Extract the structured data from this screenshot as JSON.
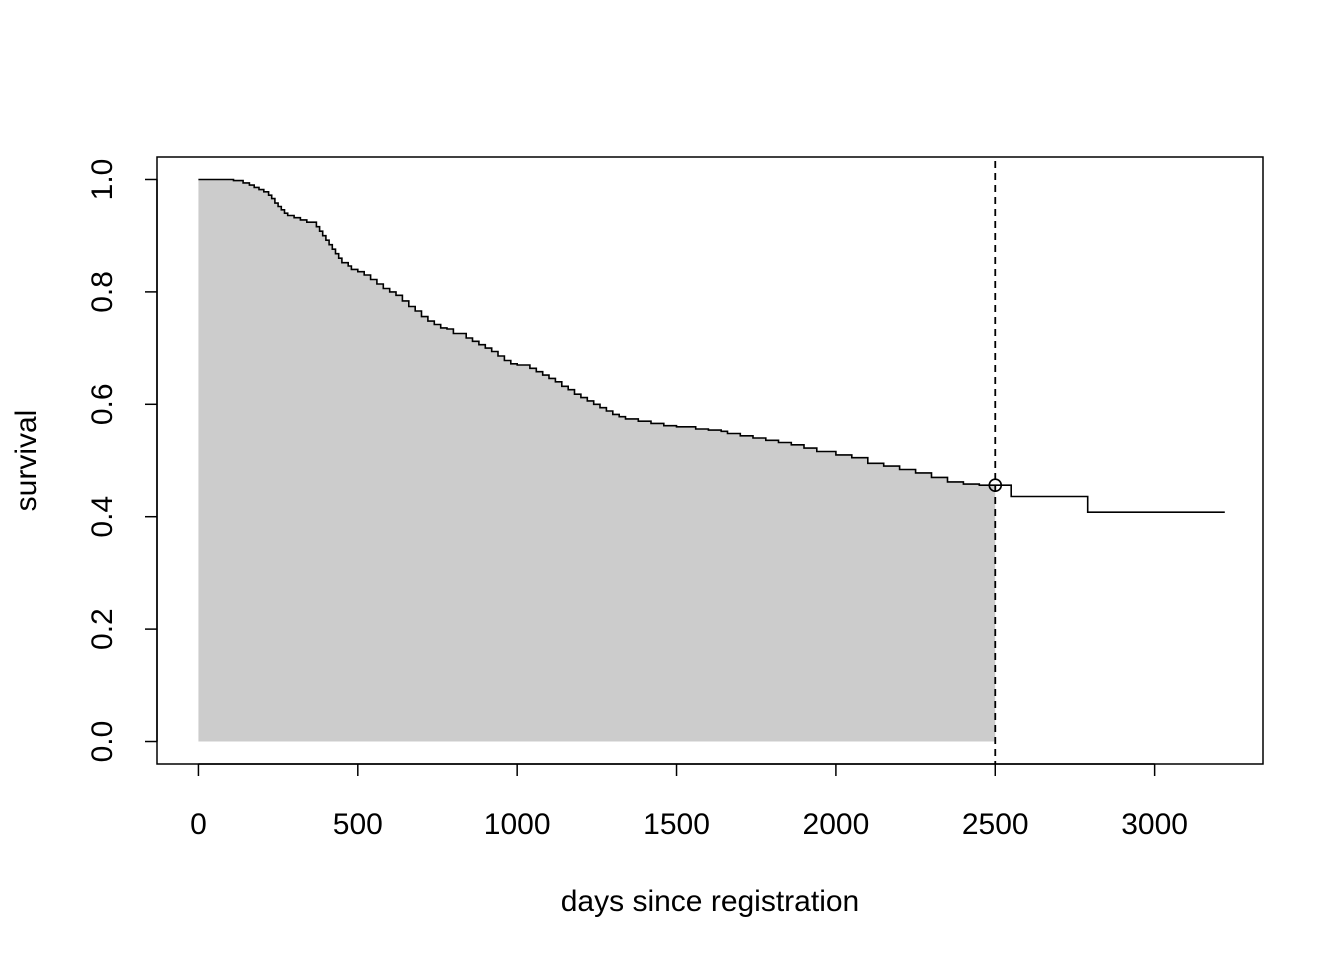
{
  "chart_data": {
    "type": "line",
    "title": "",
    "xlabel": "days since registration",
    "ylabel": "survival",
    "xlim": [
      -130,
      3340
    ],
    "ylim": [
      -0.04,
      1.04
    ],
    "x_ticks": [
      0,
      500,
      1000,
      1500,
      2000,
      2500,
      3000
    ],
    "x_tick_labels": [
      "0",
      "500",
      "1000",
      "1500",
      "2000",
      "2500",
      "3000"
    ],
    "y_ticks": [
      0.0,
      0.2,
      0.4,
      0.6,
      0.8,
      1.0
    ],
    "y_tick_labels": [
      "0.0",
      "0.2",
      "0.4",
      "0.6",
      "0.8",
      "1.0"
    ],
    "grid": false,
    "legend": false,
    "colors": {
      "line": "#000000",
      "shade": "#cccccc",
      "reference_line": "#000000"
    },
    "series": [
      {
        "style": "step",
        "x": [
          0,
          110,
          140,
          160,
          175,
          190,
          205,
          220,
          230,
          240,
          250,
          260,
          270,
          280,
          300,
          320,
          340,
          370,
          380,
          390,
          400,
          410,
          420,
          430,
          440,
          450,
          470,
          480,
          500,
          520,
          540,
          560,
          580,
          600,
          620,
          640,
          660,
          680,
          700,
          720,
          740,
          760,
          780,
          800,
          840,
          860,
          880,
          900,
          920,
          940,
          960,
          980,
          1000,
          1040,
          1060,
          1080,
          1100,
          1120,
          1140,
          1160,
          1180,
          1200,
          1220,
          1240,
          1260,
          1280,
          1300,
          1320,
          1340,
          1380,
          1420,
          1460,
          1500,
          1560,
          1600,
          1640,
          1660,
          1700,
          1740,
          1780,
          1820,
          1860,
          1900,
          1940,
          2000,
          2050,
          2100,
          2150,
          2200,
          2250,
          2300,
          2350,
          2400,
          2450,
          2500,
          2550,
          2790,
          3220
        ],
        "y": [
          1.0,
          0.998,
          0.994,
          0.99,
          0.986,
          0.982,
          0.978,
          0.972,
          0.966,
          0.958,
          0.952,
          0.946,
          0.94,
          0.936,
          0.932,
          0.928,
          0.924,
          0.916,
          0.908,
          0.9,
          0.892,
          0.884,
          0.876,
          0.868,
          0.86,
          0.852,
          0.846,
          0.84,
          0.836,
          0.83,
          0.822,
          0.814,
          0.806,
          0.8,
          0.794,
          0.784,
          0.774,
          0.766,
          0.756,
          0.748,
          0.742,
          0.736,
          0.734,
          0.726,
          0.718,
          0.712,
          0.706,
          0.7,
          0.694,
          0.686,
          0.678,
          0.672,
          0.67,
          0.664,
          0.658,
          0.652,
          0.646,
          0.64,
          0.632,
          0.626,
          0.618,
          0.612,
          0.606,
          0.6,
          0.594,
          0.588,
          0.582,
          0.578,
          0.574,
          0.57,
          0.566,
          0.562,
          0.56,
          0.556,
          0.554,
          0.552,
          0.548,
          0.544,
          0.54,
          0.536,
          0.532,
          0.528,
          0.522,
          0.516,
          0.51,
          0.505,
          0.495,
          0.49,
          0.484,
          0.478,
          0.47,
          0.462,
          0.458,
          0.456,
          0.456,
          0.436,
          0.408,
          0.408
        ]
      }
    ],
    "shaded_area": {
      "x_from": 0,
      "x_to": 2500,
      "fill": "#cccccc"
    },
    "reference_line": {
      "x": 2500,
      "style": "dashed"
    },
    "marker": {
      "x": 2500,
      "y": 0.456,
      "shape": "open-circle"
    }
  }
}
